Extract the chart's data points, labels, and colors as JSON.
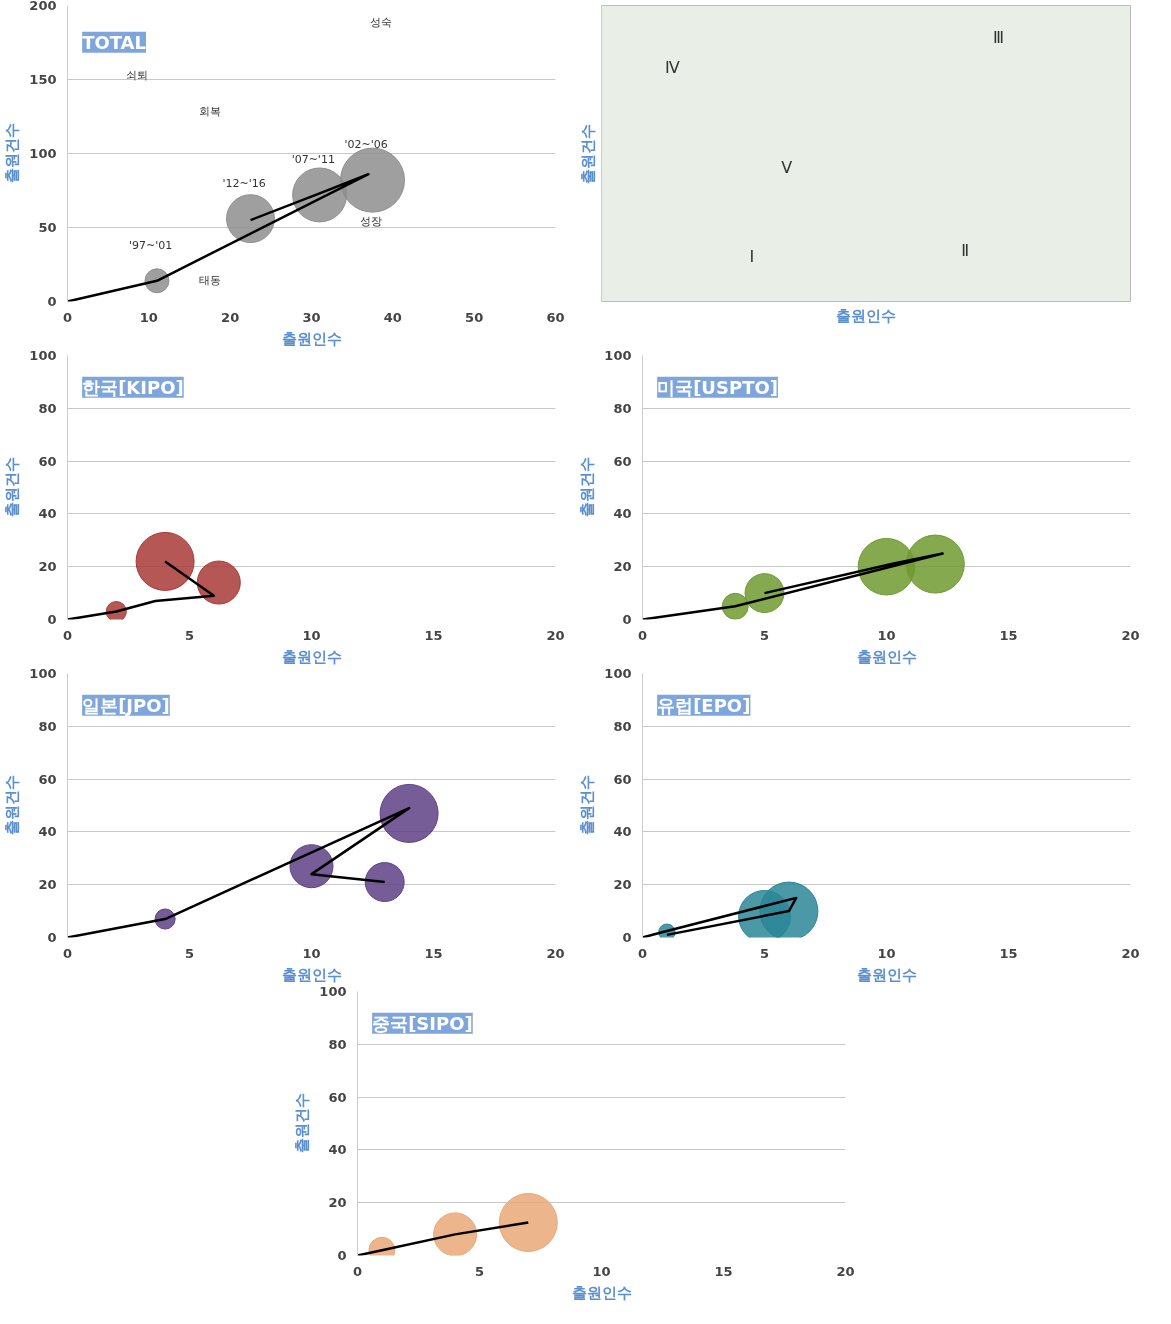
{
  "chart_data": [
    {
      "type": "bubble",
      "title": "TOTAL",
      "xlabel": "출원인수",
      "ylabel": "출원건수",
      "xlim": [
        0,
        60
      ],
      "ylim": [
        0,
        200
      ],
      "xticks": [
        0,
        10,
        20,
        30,
        40,
        50,
        60
      ],
      "yticks": [
        0,
        50,
        100,
        150,
        200
      ],
      "grid": "y",
      "series": [
        {
          "type": "bubble",
          "color": "#8e8e8e",
          "x": [
            11,
            22.5,
            31,
            37.5
          ],
          "values": [
            14,
            56,
            72,
            82
          ],
          "sizes": [
            0.14,
            0.56,
            0.71,
            1
          ]
        },
        {
          "type": "line",
          "color": "#000000",
          "x": [
            0,
            11,
            37,
            31,
            22.5
          ],
          "values": [
            0,
            14,
            86,
            73,
            55
          ]
        }
      ],
      "annotations": [
        {
          "text": "'97~'01",
          "x": 11,
          "y": 14
        },
        {
          "text": "'12~'16",
          "x": 22.5,
          "y": 56
        },
        {
          "text": "'07~'11",
          "x": 31,
          "y": 72
        },
        {
          "text": "'02~'06",
          "x": 37.5,
          "y": 82
        },
        "성숙",
        "쇠퇴",
        "회복",
        "성장",
        "태동"
      ]
    },
    {
      "type": "other",
      "xlabel": "출원인수",
      "ylabel": "출원건수",
      "annotations": [
        "Ⅰ",
        "Ⅱ",
        "Ⅲ",
        "Ⅳ",
        "Ⅴ"
      ]
    },
    {
      "type": "bubble",
      "title": "한국[KIPO]",
      "xlabel": "출원인수",
      "ylabel": "출원건수",
      "xlim": [
        0,
        20
      ],
      "ylim": [
        0,
        100
      ],
      "xticks": [
        0,
        5,
        10,
        15,
        20
      ],
      "yticks": [
        0,
        20,
        40,
        60,
        80,
        100
      ],
      "grid": "y",
      "series": [
        {
          "type": "bubble",
          "color": "#a83a36",
          "x": [
            2,
            6.2,
            4
          ],
          "values": [
            3,
            14,
            22
          ],
          "sizes": [
            0.12,
            0.55,
            1
          ]
        },
        {
          "type": "line",
          "color": "#000000",
          "x": [
            0,
            2,
            3.6,
            6,
            4
          ],
          "values": [
            0,
            3,
            7,
            9,
            22
          ]
        }
      ]
    },
    {
      "type": "bubble",
      "title": "미국[USPTO]",
      "xlabel": "출원인수",
      "ylabel": "출원건수",
      "xlim": [
        0,
        20
      ],
      "ylim": [
        0,
        100
      ],
      "xticks": [
        0,
        5,
        10,
        15,
        20
      ],
      "yticks": [
        0,
        20,
        40,
        60,
        80,
        100
      ],
      "grid": "y",
      "series": [
        {
          "type": "bubble",
          "color": "#6f9a30",
          "x": [
            3.8,
            5,
            10,
            12
          ],
          "values": [
            5,
            10,
            20,
            21
          ],
          "sizes": [
            0.2,
            0.45,
            0.95,
            1
          ]
        },
        {
          "type": "line",
          "color": "#000000",
          "x": [
            0,
            3.8,
            12.3,
            10.2,
            5
          ],
          "values": [
            0,
            5,
            25,
            21,
            10
          ]
        }
      ]
    },
    {
      "type": "bubble",
      "title": "일본[JPO]",
      "xlabel": "출원인수",
      "ylabel": "출원건수",
      "xlim": [
        0,
        20
      ],
      "ylim": [
        0,
        100
      ],
      "xticks": [
        0,
        5,
        10,
        15,
        20
      ],
      "yticks": [
        0,
        20,
        40,
        60,
        80,
        100
      ],
      "grid": "y",
      "series": [
        {
          "type": "bubble",
          "color": "#5e4186",
          "x": [
            4,
            10,
            13,
            14
          ],
          "values": [
            7,
            27,
            21,
            47
          ],
          "sizes": [
            0.12,
            0.55,
            0.45,
            1
          ]
        },
        {
          "type": "line",
          "color": "#000000",
          "x": [
            0,
            4,
            14,
            10,
            13
          ],
          "values": [
            0,
            7,
            49,
            24,
            21
          ]
        }
      ]
    },
    {
      "type": "bubble",
      "title": "유럽[EPO]",
      "xlabel": "출원인수",
      "ylabel": "출원건수",
      "xlim": [
        0,
        20
      ],
      "ylim": [
        0,
        100
      ],
      "xticks": [
        0,
        5,
        10,
        15,
        20
      ],
      "yticks": [
        0,
        20,
        40,
        60,
        80,
        100
      ],
      "grid": "y",
      "series": [
        {
          "type": "bubble",
          "color": "#2b8696",
          "x": [
            1,
            5,
            6
          ],
          "values": [
            2,
            8,
            10
          ],
          "sizes": [
            0.08,
            0.8,
            1
          ]
        },
        {
          "type": "line",
          "color": "#000000",
          "x": [
            0,
            0.8,
            6.3,
            6,
            1
          ],
          "values": [
            0,
            2,
            15,
            10,
            1
          ]
        }
      ]
    },
    {
      "type": "bubble",
      "title": "중국[SIPO]",
      "xlabel": "출원인수",
      "ylabel": "출원건수",
      "xlim": [
        0,
        20
      ],
      "ylim": [
        0,
        100
      ],
      "xticks": [
        0,
        5,
        10,
        15,
        20
      ],
      "yticks": [
        0,
        20,
        40,
        60,
        80,
        100
      ],
      "grid": "y",
      "series": [
        {
          "type": "bubble",
          "color": "#e9a877",
          "x": [
            1,
            4,
            7
          ],
          "values": [
            2,
            8,
            12.5
          ],
          "sizes": [
            0.2,
            0.55,
            1
          ]
        },
        {
          "type": "line",
          "color": "#000000",
          "x": [
            0,
            1,
            4,
            7
          ],
          "values": [
            0,
            2,
            8,
            12.5
          ]
        }
      ]
    }
  ]
}
